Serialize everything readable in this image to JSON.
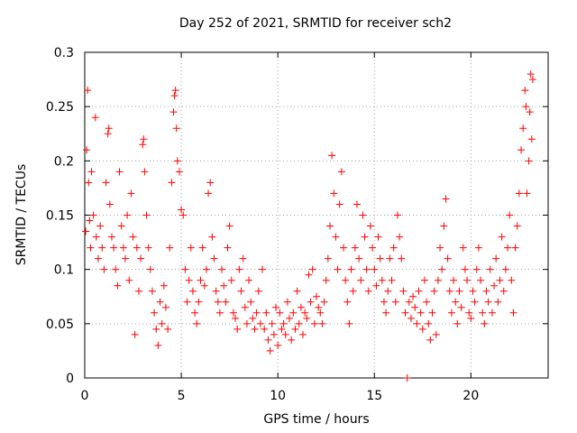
{
  "chart_data": {
    "type": "scatter",
    "title": "Day 252 of 2021, SRMTID for receiver sch2",
    "xlabel": "GPS time / hours",
    "ylabel": "SRMTID / TECUs",
    "xlim": [
      0,
      24
    ],
    "ylim": [
      0,
      0.3
    ],
    "x_ticks": [
      0,
      5,
      10,
      15,
      20
    ],
    "y_ticks": [
      0,
      0.05,
      0.1,
      0.15,
      0.2,
      0.25,
      0.3
    ],
    "x_tick_labels": [
      "0",
      "5",
      "10",
      "15",
      "20"
    ],
    "y_tick_labels": [
      "0",
      "0.05",
      "0.1",
      "0.15",
      "0.2",
      "0.25",
      "0.3"
    ],
    "grid": true,
    "marker": "+",
    "color": "#ff0000",
    "series": [
      {
        "name": "SRMTID",
        "points": [
          [
            0.05,
            0.135
          ],
          [
            0.1,
            0.21
          ],
          [
            0.15,
            0.265
          ],
          [
            0.2,
            0.18
          ],
          [
            0.25,
            0.145
          ],
          [
            0.3,
            0.12
          ],
          [
            0.35,
            0.19
          ],
          [
            0.45,
            0.15
          ],
          [
            0.55,
            0.24
          ],
          [
            0.6,
            0.13
          ],
          [
            0.7,
            0.11
          ],
          [
            0.8,
            0.14
          ],
          [
            0.9,
            0.12
          ],
          [
            1.0,
            0.1
          ],
          [
            1.1,
            0.18
          ],
          [
            1.2,
            0.225
          ],
          [
            1.25,
            0.23
          ],
          [
            1.3,
            0.16
          ],
          [
            1.4,
            0.13
          ],
          [
            1.5,
            0.12
          ],
          [
            1.6,
            0.1
          ],
          [
            1.7,
            0.085
          ],
          [
            1.8,
            0.19
          ],
          [
            1.9,
            0.14
          ],
          [
            2.0,
            0.12
          ],
          [
            2.1,
            0.11
          ],
          [
            2.2,
            0.15
          ],
          [
            2.3,
            0.09
          ],
          [
            2.4,
            0.17
          ],
          [
            2.5,
            0.13
          ],
          [
            2.6,
            0.04
          ],
          [
            2.7,
            0.12
          ],
          [
            2.8,
            0.08
          ],
          [
            2.9,
            0.11
          ],
          [
            3.0,
            0.215
          ],
          [
            3.05,
            0.22
          ],
          [
            3.1,
            0.19
          ],
          [
            3.2,
            0.15
          ],
          [
            3.3,
            0.12
          ],
          [
            3.4,
            0.1
          ],
          [
            3.5,
            0.08
          ],
          [
            3.6,
            0.06
          ],
          [
            3.7,
            0.045
          ],
          [
            3.8,
            0.03
          ],
          [
            3.9,
            0.07
          ],
          [
            4.0,
            0.05
          ],
          [
            4.1,
            0.085
          ],
          [
            4.2,
            0.065
          ],
          [
            4.3,
            0.045
          ],
          [
            4.4,
            0.12
          ],
          [
            4.5,
            0.18
          ],
          [
            4.6,
            0.245
          ],
          [
            4.65,
            0.26
          ],
          [
            4.7,
            0.265
          ],
          [
            4.75,
            0.23
          ],
          [
            4.8,
            0.2
          ],
          [
            4.9,
            0.19
          ],
          [
            5.0,
            0.155
          ],
          [
            5.1,
            0.15
          ],
          [
            5.2,
            0.1
          ],
          [
            5.3,
            0.07
          ],
          [
            5.4,
            0.09
          ],
          [
            5.5,
            0.12
          ],
          [
            5.6,
            0.08
          ],
          [
            5.7,
            0.06
          ],
          [
            5.8,
            0.05
          ],
          [
            5.9,
            0.07
          ],
          [
            6.0,
            0.09
          ],
          [
            6.1,
            0.12
          ],
          [
            6.2,
            0.085
          ],
          [
            6.3,
            0.1
          ],
          [
            6.4,
            0.17
          ],
          [
            6.5,
            0.18
          ],
          [
            6.6,
            0.13
          ],
          [
            6.7,
            0.11
          ],
          [
            6.8,
            0.08
          ],
          [
            6.9,
            0.07
          ],
          [
            7.0,
            0.06
          ],
          [
            7.1,
            0.1
          ],
          [
            7.2,
            0.085
          ],
          [
            7.3,
            0.07
          ],
          [
            7.4,
            0.12
          ],
          [
            7.5,
            0.14
          ],
          [
            7.6,
            0.09
          ],
          [
            7.7,
            0.06
          ],
          [
            7.8,
            0.055
          ],
          [
            7.9,
            0.045
          ],
          [
            8.0,
            0.1
          ],
          [
            8.1,
            0.08
          ],
          [
            8.2,
            0.11
          ],
          [
            8.3,
            0.065
          ],
          [
            8.4,
            0.05
          ],
          [
            8.5,
            0.09
          ],
          [
            8.6,
            0.07
          ],
          [
            8.7,
            0.055
          ],
          [
            8.8,
            0.045
          ],
          [
            8.9,
            0.06
          ],
          [
            9.0,
            0.08
          ],
          [
            9.1,
            0.05
          ],
          [
            9.2,
            0.1
          ],
          [
            9.3,
            0.045
          ],
          [
            9.4,
            0.06
          ],
          [
            9.5,
            0.035
          ],
          [
            9.6,
            0.025
          ],
          [
            9.7,
            0.05
          ],
          [
            9.8,
            0.04
          ],
          [
            9.9,
            0.065
          ],
          [
            10.0,
            0.03
          ],
          [
            10.1,
            0.06
          ],
          [
            10.2,
            0.045
          ],
          [
            10.3,
            0.05
          ],
          [
            10.4,
            0.04
          ],
          [
            10.5,
            0.07
          ],
          [
            10.6,
            0.055
          ],
          [
            10.7,
            0.035
          ],
          [
            10.8,
            0.06
          ],
          [
            10.9,
            0.045
          ],
          [
            11.0,
            0.08
          ],
          [
            11.1,
            0.05
          ],
          [
            11.2,
            0.065
          ],
          [
            11.3,
            0.04
          ],
          [
            11.4,
            0.06
          ],
          [
            11.5,
            0.055
          ],
          [
            11.6,
            0.095
          ],
          [
            11.7,
            0.07
          ],
          [
            11.8,
            0.1
          ],
          [
            11.9,
            0.05
          ],
          [
            12.0,
            0.075
          ],
          [
            12.1,
            0.065
          ],
          [
            12.2,
            0.06
          ],
          [
            12.3,
            0.05
          ],
          [
            12.4,
            0.07
          ],
          [
            12.5,
            0.09
          ],
          [
            12.6,
            0.11
          ],
          [
            12.7,
            0.14
          ],
          [
            12.8,
            0.205
          ],
          [
            12.9,
            0.17
          ],
          [
            13.0,
            0.13
          ],
          [
            13.1,
            0.1
          ],
          [
            13.2,
            0.16
          ],
          [
            13.3,
            0.19
          ],
          [
            13.4,
            0.12
          ],
          [
            13.5,
            0.09
          ],
          [
            13.6,
            0.07
          ],
          [
            13.7,
            0.05
          ],
          [
            13.8,
            0.1
          ],
          [
            13.9,
            0.08
          ],
          [
            14.0,
            0.12
          ],
          [
            14.1,
            0.16
          ],
          [
            14.2,
            0.11
          ],
          [
            14.3,
            0.09
          ],
          [
            14.4,
            0.15
          ],
          [
            14.5,
            0.13
          ],
          [
            14.6,
            0.1
          ],
          [
            14.7,
            0.08
          ],
          [
            14.8,
            0.14
          ],
          [
            14.9,
            0.12
          ],
          [
            15.0,
            0.1
          ],
          [
            15.1,
            0.085
          ],
          [
            15.2,
            0.13
          ],
          [
            15.3,
            0.11
          ],
          [
            15.4,
            0.09
          ],
          [
            15.5,
            0.07
          ],
          [
            15.6,
            0.06
          ],
          [
            15.7,
            0.08
          ],
          [
            15.8,
            0.11
          ],
          [
            15.9,
            0.09
          ],
          [
            16.0,
            0.12
          ],
          [
            16.1,
            0.07
          ],
          [
            16.2,
            0.15
          ],
          [
            16.3,
            0.13
          ],
          [
            16.4,
            0.11
          ],
          [
            16.5,
            0.08
          ],
          [
            16.6,
            0.06
          ],
          [
            16.7,
            0.0
          ],
          [
            16.8,
            0.07
          ],
          [
            16.9,
            0.055
          ],
          [
            17.0,
            0.075
          ],
          [
            17.1,
            0.065
          ],
          [
            17.2,
            0.05
          ],
          [
            17.3,
            0.08
          ],
          [
            17.4,
            0.06
          ],
          [
            17.5,
            0.045
          ],
          [
            17.6,
            0.09
          ],
          [
            17.7,
            0.07
          ],
          [
            17.8,
            0.05
          ],
          [
            17.9,
            0.035
          ],
          [
            18.0,
            0.06
          ],
          [
            18.1,
            0.08
          ],
          [
            18.2,
            0.04
          ],
          [
            18.3,
            0.09
          ],
          [
            18.4,
            0.12
          ],
          [
            18.5,
            0.1
          ],
          [
            18.6,
            0.14
          ],
          [
            18.7,
            0.165
          ],
          [
            18.8,
            0.11
          ],
          [
            18.9,
            0.08
          ],
          [
            19.0,
            0.06
          ],
          [
            19.1,
            0.09
          ],
          [
            19.2,
            0.07
          ],
          [
            19.3,
            0.05
          ],
          [
            19.4,
            0.08
          ],
          [
            19.5,
            0.065
          ],
          [
            19.6,
            0.12
          ],
          [
            19.7,
            0.1
          ],
          [
            19.8,
            0.09
          ],
          [
            19.9,
            0.06
          ],
          [
            20.0,
            0.055
          ],
          [
            20.1,
            0.08
          ],
          [
            20.2,
            0.07
          ],
          [
            20.3,
            0.1
          ],
          [
            20.4,
            0.12
          ],
          [
            20.5,
            0.09
          ],
          [
            20.6,
            0.06
          ],
          [
            20.7,
            0.05
          ],
          [
            20.8,
            0.08
          ],
          [
            20.9,
            0.07
          ],
          [
            21.0,
            0.1
          ],
          [
            21.1,
            0.06
          ],
          [
            21.2,
            0.085
          ],
          [
            21.3,
            0.11
          ],
          [
            21.4,
            0.07
          ],
          [
            21.5,
            0.09
          ],
          [
            21.6,
            0.13
          ],
          [
            21.7,
            0.08
          ],
          [
            21.8,
            0.1
          ],
          [
            21.9,
            0.12
          ],
          [
            22.0,
            0.15
          ],
          [
            22.1,
            0.09
          ],
          [
            22.2,
            0.06
          ],
          [
            22.3,
            0.12
          ],
          [
            22.4,
            0.14
          ],
          [
            22.5,
            0.17
          ],
          [
            22.6,
            0.21
          ],
          [
            22.7,
            0.23
          ],
          [
            22.8,
            0.265
          ],
          [
            22.85,
            0.25
          ],
          [
            22.9,
            0.17
          ],
          [
            23.0,
            0.2
          ],
          [
            23.05,
            0.245
          ],
          [
            23.1,
            0.28
          ],
          [
            23.15,
            0.22
          ],
          [
            23.2,
            0.275
          ]
        ]
      }
    ]
  }
}
